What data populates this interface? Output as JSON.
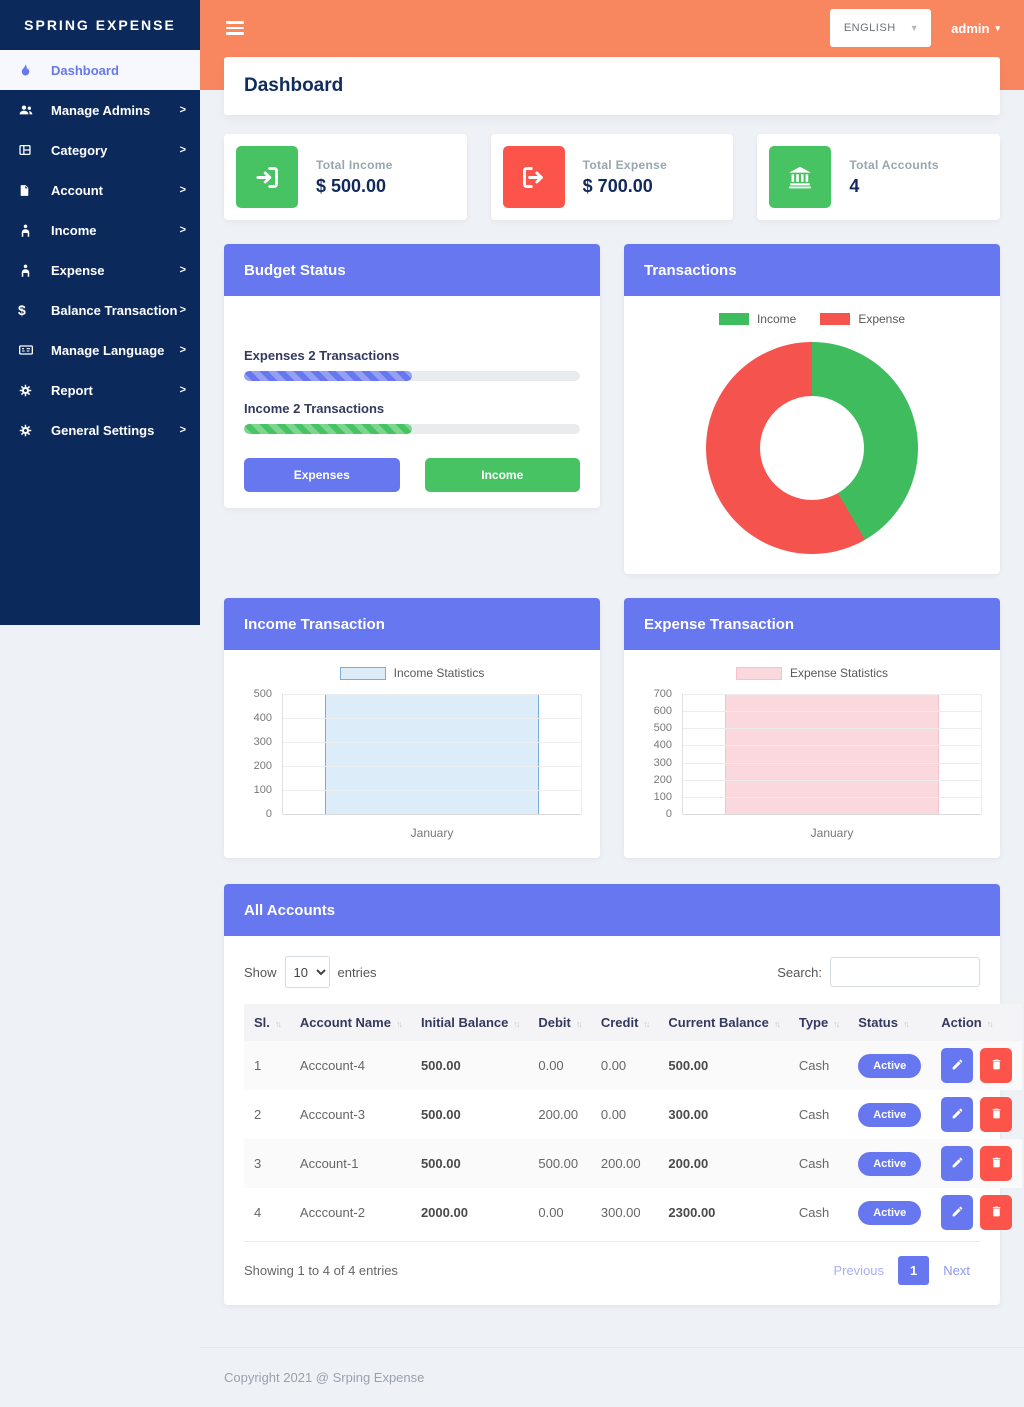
{
  "sidebar": {
    "brand": "SPRING EXPENSE",
    "items": [
      {
        "label": "Dashboard",
        "icon": "fire-icon",
        "active": true,
        "has_submenu": false
      },
      {
        "label": "Manage Admins",
        "icon": "users-icon",
        "active": false,
        "has_submenu": true
      },
      {
        "label": "Category",
        "icon": "table-icon",
        "active": false,
        "has_submenu": true
      },
      {
        "label": "Account",
        "icon": "file-icon",
        "active": false,
        "has_submenu": true
      },
      {
        "label": "Income",
        "icon": "person-icon",
        "active": false,
        "has_submenu": true
      },
      {
        "label": "Expense",
        "icon": "person-icon",
        "active": false,
        "has_submenu": true
      },
      {
        "label": "Balance Transaction",
        "icon": "dollar-icon",
        "active": false,
        "has_submenu": true
      },
      {
        "label": "Manage Language",
        "icon": "language-icon",
        "active": false,
        "has_submenu": true
      },
      {
        "label": "Report",
        "icon": "cogs-icon",
        "active": false,
        "has_submenu": true
      },
      {
        "label": "General Settings",
        "icon": "cogs-icon",
        "active": false,
        "has_submenu": true
      }
    ]
  },
  "topbar": {
    "language": "ENGLISH",
    "user": "admin"
  },
  "page_title": "Dashboard",
  "stats": [
    {
      "label": "Total Income",
      "value": "$ 500.00",
      "icon": "sign-in-icon",
      "color": "#47c363"
    },
    {
      "label": "Total Expense",
      "value": "$ 700.00",
      "icon": "sign-out-icon",
      "color": "#fc544b"
    },
    {
      "label": "Total Accounts",
      "value": "4",
      "icon": "bank-icon",
      "color": "#47c363"
    }
  ],
  "budget_status": {
    "title": "Budget Status",
    "bars": [
      {
        "label": "Expenses 2 Transactions",
        "percent": 50,
        "color": "#6777ef"
      },
      {
        "label": "Income 2 Transactions",
        "percent": 50,
        "color": "#47c363"
      }
    ],
    "buttons": [
      {
        "label": "Expenses",
        "color": "#6777ef"
      },
      {
        "label": "Income",
        "color": "#47c363"
      }
    ]
  },
  "chart_data": [
    {
      "id": "transactions",
      "type": "pie",
      "title": "Transactions",
      "labels": [
        "Income",
        "Expense"
      ],
      "values": [
        500,
        700
      ],
      "colors": [
        "#3fbc5e",
        "#f4534e"
      ],
      "donut": true,
      "legend_position": "top"
    },
    {
      "id": "income",
      "type": "bar",
      "title": "Income Transaction",
      "legend": "Income Statistics",
      "categories": [
        "January"
      ],
      "values": [
        500
      ],
      "ylim": [
        0,
        500
      ],
      "yticks": [
        0,
        100,
        200,
        300,
        400,
        500
      ],
      "bar_fill": "#dcecf8",
      "bar_border": "#78aed8",
      "grid": true
    },
    {
      "id": "expense",
      "type": "bar",
      "title": "Expense Transaction",
      "legend": "Expense Statistics",
      "categories": [
        "January"
      ],
      "values": [
        700
      ],
      "ylim": [
        0,
        700
      ],
      "yticks": [
        0,
        100,
        200,
        300,
        400,
        500,
        600,
        700
      ],
      "bar_fill": "#fbd8dd",
      "bar_border": "#f6c3cb",
      "grid": true
    }
  ],
  "accounts": {
    "title": "All Accounts",
    "show_label": "Show",
    "page_size": "10",
    "entries_label": "entries",
    "search_label": "Search:",
    "columns": [
      "Sl.",
      "Account Name",
      "Initial Balance",
      "Debit",
      "Credit",
      "Current Balance",
      "Type",
      "Status",
      "Action"
    ],
    "rows": [
      [
        "1",
        "Acccount-4",
        "500.00",
        "0.00",
        "0.00",
        "500.00",
        "Cash",
        "Active"
      ],
      [
        "2",
        "Acccount-3",
        "500.00",
        "200.00",
        "0.00",
        "300.00",
        "Cash",
        "Active"
      ],
      [
        "3",
        "Account-1",
        "500.00",
        "500.00",
        "200.00",
        "200.00",
        "Cash",
        "Active"
      ],
      [
        "4",
        "Acccount-2",
        "2000.00",
        "0.00",
        "300.00",
        "2300.00",
        "Cash",
        "Active"
      ]
    ],
    "summary": "Showing 1 to 4 of 4 entries",
    "pagination": {
      "previous": "Previous",
      "current": "1",
      "next": "Next"
    }
  },
  "footer": {
    "copyright": "Copyright 2021 @ Srping Expense"
  },
  "theme": {
    "purple": "#6777ef",
    "green": "#47c363",
    "red": "#fc544b",
    "orange": "#f8875f",
    "sidebar_bg": "#0b2a5b",
    "navy": "#12295c"
  }
}
